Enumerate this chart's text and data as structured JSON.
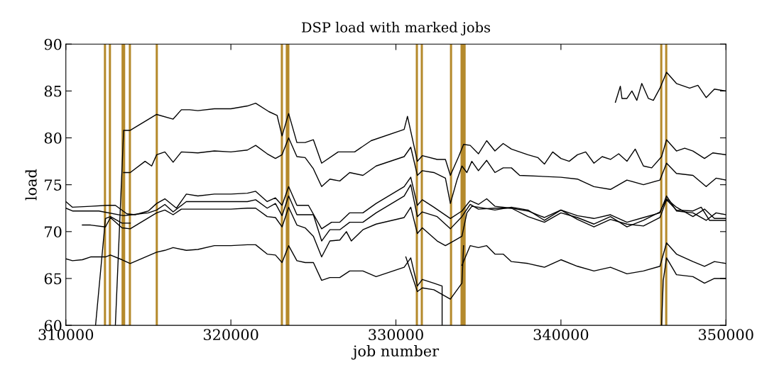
{
  "chart_data": {
    "type": "line",
    "title": "DSP load with marked jobs",
    "xlabel": "job number",
    "ylabel": "load",
    "xlim": [
      310000,
      350000
    ],
    "ylim": [
      60,
      90
    ],
    "xticks": [
      310000,
      320000,
      330000,
      340000,
      350000
    ],
    "yticks": [
      60,
      65,
      70,
      75,
      80,
      85,
      90
    ],
    "grid": false,
    "marker": "none",
    "line_style": "solid",
    "series": [
      {
        "color": "#000000",
        "x": [
          343300,
          343600,
          343700,
          344000,
          344300,
          344600,
          344900,
          345300,
          345600,
          346000,
          346400,
          347000,
          347800,
          348300,
          348800,
          349300,
          350000
        ],
        "values": [
          83.8,
          85.5,
          84.2,
          84.2,
          85,
          84,
          85.8,
          84.2,
          84,
          85.3,
          87,
          85.8,
          85.3,
          85.6,
          84.3,
          85.2,
          85
        ]
      },
      {
        "color": "#000000",
        "x": [
          313000,
          313500,
          313900,
          315500,
          316500,
          317000,
          317500,
          318000,
          319000,
          320000,
          321000,
          321500,
          322300,
          322800,
          323100,
          323500,
          324000,
          324500,
          325000,
          325500,
          326500,
          327500,
          328500,
          330500,
          330700,
          331300,
          331600,
          332500,
          333000,
          333300,
          333800,
          334100,
          334500,
          335000,
          335500,
          336000,
          336500,
          337000,
          337500,
          338000,
          338600,
          339000,
          339500,
          340000,
          340500,
          341000,
          341500,
          342000,
          342500,
          343000,
          343500,
          344000,
          344500,
          345000,
          345500,
          346100,
          346400,
          347000,
          347500,
          348000,
          348700,
          349200,
          350000
        ],
        "values": [
          60,
          80.8,
          80.8,
          82.5,
          82,
          83,
          83,
          82.9,
          83.1,
          83.1,
          83.4,
          83.7,
          82.8,
          82.4,
          80.2,
          82.6,
          79.5,
          79.5,
          79.8,
          77.3,
          78.5,
          78.5,
          79.7,
          80.9,
          82.3,
          77.5,
          78.1,
          77.7,
          77.7,
          76,
          78,
          79.3,
          79.2,
          78.3,
          79.7,
          78.6,
          79.4,
          78.8,
          78.5,
          78.2,
          77.9,
          77.2,
          78.5,
          77.8,
          77.5,
          78.2,
          78.5,
          77.3,
          78,
          77.7,
          78.3,
          77.5,
          78.8,
          77,
          76.8,
          78,
          79.8,
          78.6,
          78.9,
          78.6,
          77.8,
          78.4,
          78.2
        ]
      },
      {
        "color": "#000000",
        "x": [
          313500,
          313900,
          314800,
          315200,
          315500,
          316000,
          316500,
          317000,
          318000,
          319000,
          320000,
          321000,
          321500,
          322200,
          322700,
          323100,
          323500,
          324000,
          324500,
          325000,
          325500,
          326000,
          326600,
          327200,
          328000,
          328800,
          330500,
          330900,
          331300,
          331600,
          332300,
          333000,
          333300,
          333700,
          334000,
          334300,
          334600,
          335000,
          335500,
          336000,
          336500,
          337000,
          337500,
          340000,
          341000,
          342000,
          343000,
          344000,
          345000,
          346000,
          346400,
          347000,
          348000,
          348800,
          349400,
          350000
        ],
        "values": [
          76.3,
          76.3,
          77.5,
          77,
          78.2,
          78.5,
          77.4,
          78.5,
          78.4,
          78.6,
          78.5,
          78.7,
          79.2,
          78.3,
          77.8,
          78.2,
          80,
          78,
          77.9,
          76.7,
          74.8,
          75.6,
          75.4,
          76.3,
          76,
          77,
          78,
          79,
          76,
          76.5,
          76.3,
          75.7,
          73,
          75.5,
          77,
          76.3,
          77.5,
          76.5,
          77.6,
          76.3,
          76.8,
          76.8,
          76,
          75.8,
          75.6,
          74.8,
          74.5,
          75.5,
          75,
          75.5,
          77.3,
          76.2,
          76,
          74.8,
          75.7,
          75.5
        ]
      },
      {
        "color": "#000000",
        "x": [
          310000,
          310400,
          311500,
          312500,
          313000,
          313700,
          314200,
          315000,
          315500,
          316000,
          316700,
          317300,
          318000,
          319000,
          320000,
          321000,
          321500,
          322200,
          322700,
          323100,
          323500,
          324000,
          324700,
          325500,
          326100,
          326600,
          327200,
          328000,
          328800,
          330500,
          330900,
          331300,
          331600,
          332300,
          333300,
          334000,
          334500,
          335000,
          335500,
          336000,
          337000,
          338000,
          339000,
          340000,
          341000,
          342000,
          343000,
          344000,
          345000,
          346000,
          346400,
          347000,
          348000,
          348800,
          349400,
          350000
        ],
        "values": [
          73.2,
          72.6,
          72.7,
          72.8,
          72.8,
          71.9,
          71.8,
          72.2,
          73,
          73.5,
          72.5,
          74,
          73.8,
          74,
          74,
          74.1,
          74.3,
          73.2,
          73.6,
          72.8,
          74.8,
          72.8,
          72.8,
          70.3,
          71,
          71,
          72,
          72,
          73,
          74.8,
          75.8,
          72.8,
          73.4,
          72.6,
          71.4,
          72.2,
          73.3,
          72.9,
          73.5,
          72.7,
          72.5,
          72.2,
          71.5,
          72.3,
          71.7,
          71.4,
          71.8,
          71,
          71.5,
          72,
          73.8,
          72.2,
          72,
          71.2,
          72,
          71.8
        ]
      },
      {
        "color": "#000000",
        "x": [
          310000,
          310400,
          312000,
          313500,
          314000,
          315000,
          315500,
          316000,
          316500,
          317300,
          318000,
          319000,
          320000,
          321000,
          321500,
          322200,
          322700,
          323100,
          323500,
          324000,
          324500,
          325000,
          325500,
          326000,
          326600,
          327200,
          328000,
          328800,
          330500,
          330900,
          331300,
          331600,
          332500,
          333300,
          334000,
          334500,
          335000,
          336000,
          337000,
          338000,
          339000,
          340000,
          341000,
          342000,
          343000,
          344000,
          345000,
          346000,
          346400,
          347000,
          348000,
          348700,
          349300,
          350000
        ],
        "values": [
          72.5,
          72.2,
          72.2,
          71.7,
          71.8,
          72,
          72.3,
          72.9,
          72.1,
          73.2,
          73.2,
          73.2,
          73.2,
          73.2,
          73.4,
          72.5,
          73,
          71.7,
          73.8,
          71.8,
          71.8,
          71.8,
          69,
          70.2,
          70.2,
          71,
          71,
          72,
          73.8,
          75,
          71.6,
          72.1,
          71.6,
          70.3,
          71.6,
          72.9,
          72.4,
          72.5,
          72.5,
          71.6,
          71,
          72,
          71.5,
          70.8,
          71.6,
          70.5,
          71.2,
          72.1,
          73.5,
          72.6,
          71.6,
          72.4,
          71.4,
          71.4
        ]
      },
      {
        "color": "#000000",
        "x": [
          311000,
          311500,
          312400,
          312700,
          313400,
          313900,
          315500,
          316000,
          316500,
          317000,
          318000,
          319000,
          320000,
          321000,
          321500,
          322200,
          322700,
          323100,
          323500,
          324000,
          324500,
          325000,
          325500,
          326000,
          326600,
          327000,
          327300,
          328000,
          328800,
          330500,
          330900,
          331300,
          331600,
          332500,
          333000,
          333500,
          334000,
          334300,
          334600,
          335000,
          336000,
          337000,
          338000,
          339000,
          340000,
          341000,
          342000,
          343000,
          344000,
          345000,
          346000,
          346400,
          347000,
          348000,
          348500,
          349000,
          350000
        ],
        "values": [
          70.7,
          70.7,
          70.5,
          71.5,
          70.4,
          70.3,
          72,
          72.3,
          71.8,
          72.4,
          72.4,
          72.4,
          72.4,
          72.5,
          72.5,
          71.6,
          71.5,
          70.5,
          72.6,
          70.7,
          70.4,
          69.5,
          67.3,
          69,
          69.1,
          70,
          69,
          70.2,
          70.8,
          71.5,
          72.6,
          69.8,
          70.4,
          69,
          68.5,
          69,
          69.5,
          72,
          72.7,
          72.6,
          72.3,
          72.6,
          72.3,
          71.2,
          72.3,
          71.3,
          70.5,
          71.3,
          70.8,
          70.6,
          71.5,
          73.4,
          72.3,
          72.2,
          72.6,
          71.2,
          71.2
        ]
      },
      {
        "color": "#000000",
        "x": [
          311800,
          312400,
          312700,
          313400,
          313900
        ],
        "values": [
          60,
          71.4,
          71.6,
          70.9,
          70.9
        ]
      },
      {
        "color": "#000000",
        "x": [
          310000,
          310400,
          311000,
          311500,
          312400,
          312700,
          313400,
          313900,
          315500,
          316000,
          316500,
          317300,
          318000,
          319000,
          320000,
          321000,
          321500,
          322200,
          322700,
          323100,
          323500,
          324000,
          324500,
          325000,
          325500,
          326000,
          326600,
          327200,
          328000,
          328800,
          330500,
          330900,
          331300,
          331600,
          332300,
          332800,
          332800
        ],
        "values": [
          67.1,
          66.9,
          67,
          67.3,
          67.3,
          67.5,
          67,
          66.6,
          67.8,
          68,
          68.3,
          68,
          68.1,
          68.5,
          68.5,
          68.6,
          68.6,
          67.6,
          67.5,
          66.7,
          68.5,
          66.9,
          66.7,
          66.7,
          64.8,
          65.1,
          65.1,
          65.8,
          65.8,
          65.2,
          66.2,
          67.2,
          64.2,
          64.9,
          64.5,
          64.2,
          60
        ]
      },
      {
        "color": "#000000",
        "x": [
          334000,
          334500,
          335000,
          335500,
          336000,
          336500,
          337000,
          338000,
          339000,
          340000,
          341000,
          342000,
          343000,
          344000,
          345000,
          346000,
          346400,
          347000,
          348000,
          348700,
          349300,
          350000
        ],
        "values": [
          66.4,
          68.5,
          68.3,
          68.5,
          67.6,
          67.6,
          66.8,
          66.6,
          66.2,
          67,
          66.3,
          65.8,
          66.2,
          65.5,
          65.8,
          66.3,
          68.8,
          67.6,
          66.8,
          66.3,
          66.8,
          66.6
        ]
      },
      {
        "color": "#000000",
        "x": [
          330600,
          331300,
          331600,
          332300,
          333300,
          334000,
          334100
        ],
        "values": [
          67.3,
          63.6,
          64,
          63.8,
          62.8,
          64.5,
          68.5
        ]
      },
      {
        "color": "#000000",
        "x": [
          346100,
          346200,
          346400,
          347000,
          348000,
          348700,
          349300,
          350000
        ],
        "values": [
          60,
          64.8,
          67.2,
          65.4,
          65.2,
          64.5,
          65,
          65
        ]
      }
    ],
    "ref_lines": [
      {
        "axis": "x",
        "value": 312370,
        "color": "#b58a2c"
      },
      {
        "axis": "x",
        "value": 312670,
        "color": "#b58a2c"
      },
      {
        "axis": "x",
        "value": 313440,
        "color": "#b58a2c"
      },
      {
        "axis": "x",
        "value": 313530,
        "color": "#b58a2c"
      },
      {
        "axis": "x",
        "value": 313880,
        "color": "#b58a2c"
      },
      {
        "axis": "x",
        "value": 315510,
        "color": "#b58a2c"
      },
      {
        "axis": "x",
        "value": 323090,
        "color": "#b58a2c"
      },
      {
        "axis": "x",
        "value": 323390,
        "color": "#b58a2c"
      },
      {
        "axis": "x",
        "value": 323480,
        "color": "#b58a2c"
      },
      {
        "axis": "x",
        "value": 331270,
        "color": "#b58a2c"
      },
      {
        "axis": "x",
        "value": 331570,
        "color": "#b58a2c"
      },
      {
        "axis": "x",
        "value": 333340,
        "color": "#b58a2c"
      },
      {
        "axis": "x",
        "value": 333980,
        "color": "#b58a2c"
      },
      {
        "axis": "x",
        "value": 334070,
        "color": "#b58a2c"
      },
      {
        "axis": "x",
        "value": 334160,
        "color": "#b58a2c"
      },
      {
        "axis": "x",
        "value": 346080,
        "color": "#b58a2c"
      },
      {
        "axis": "x",
        "value": 346380,
        "color": "#b58a2c"
      }
    ]
  }
}
